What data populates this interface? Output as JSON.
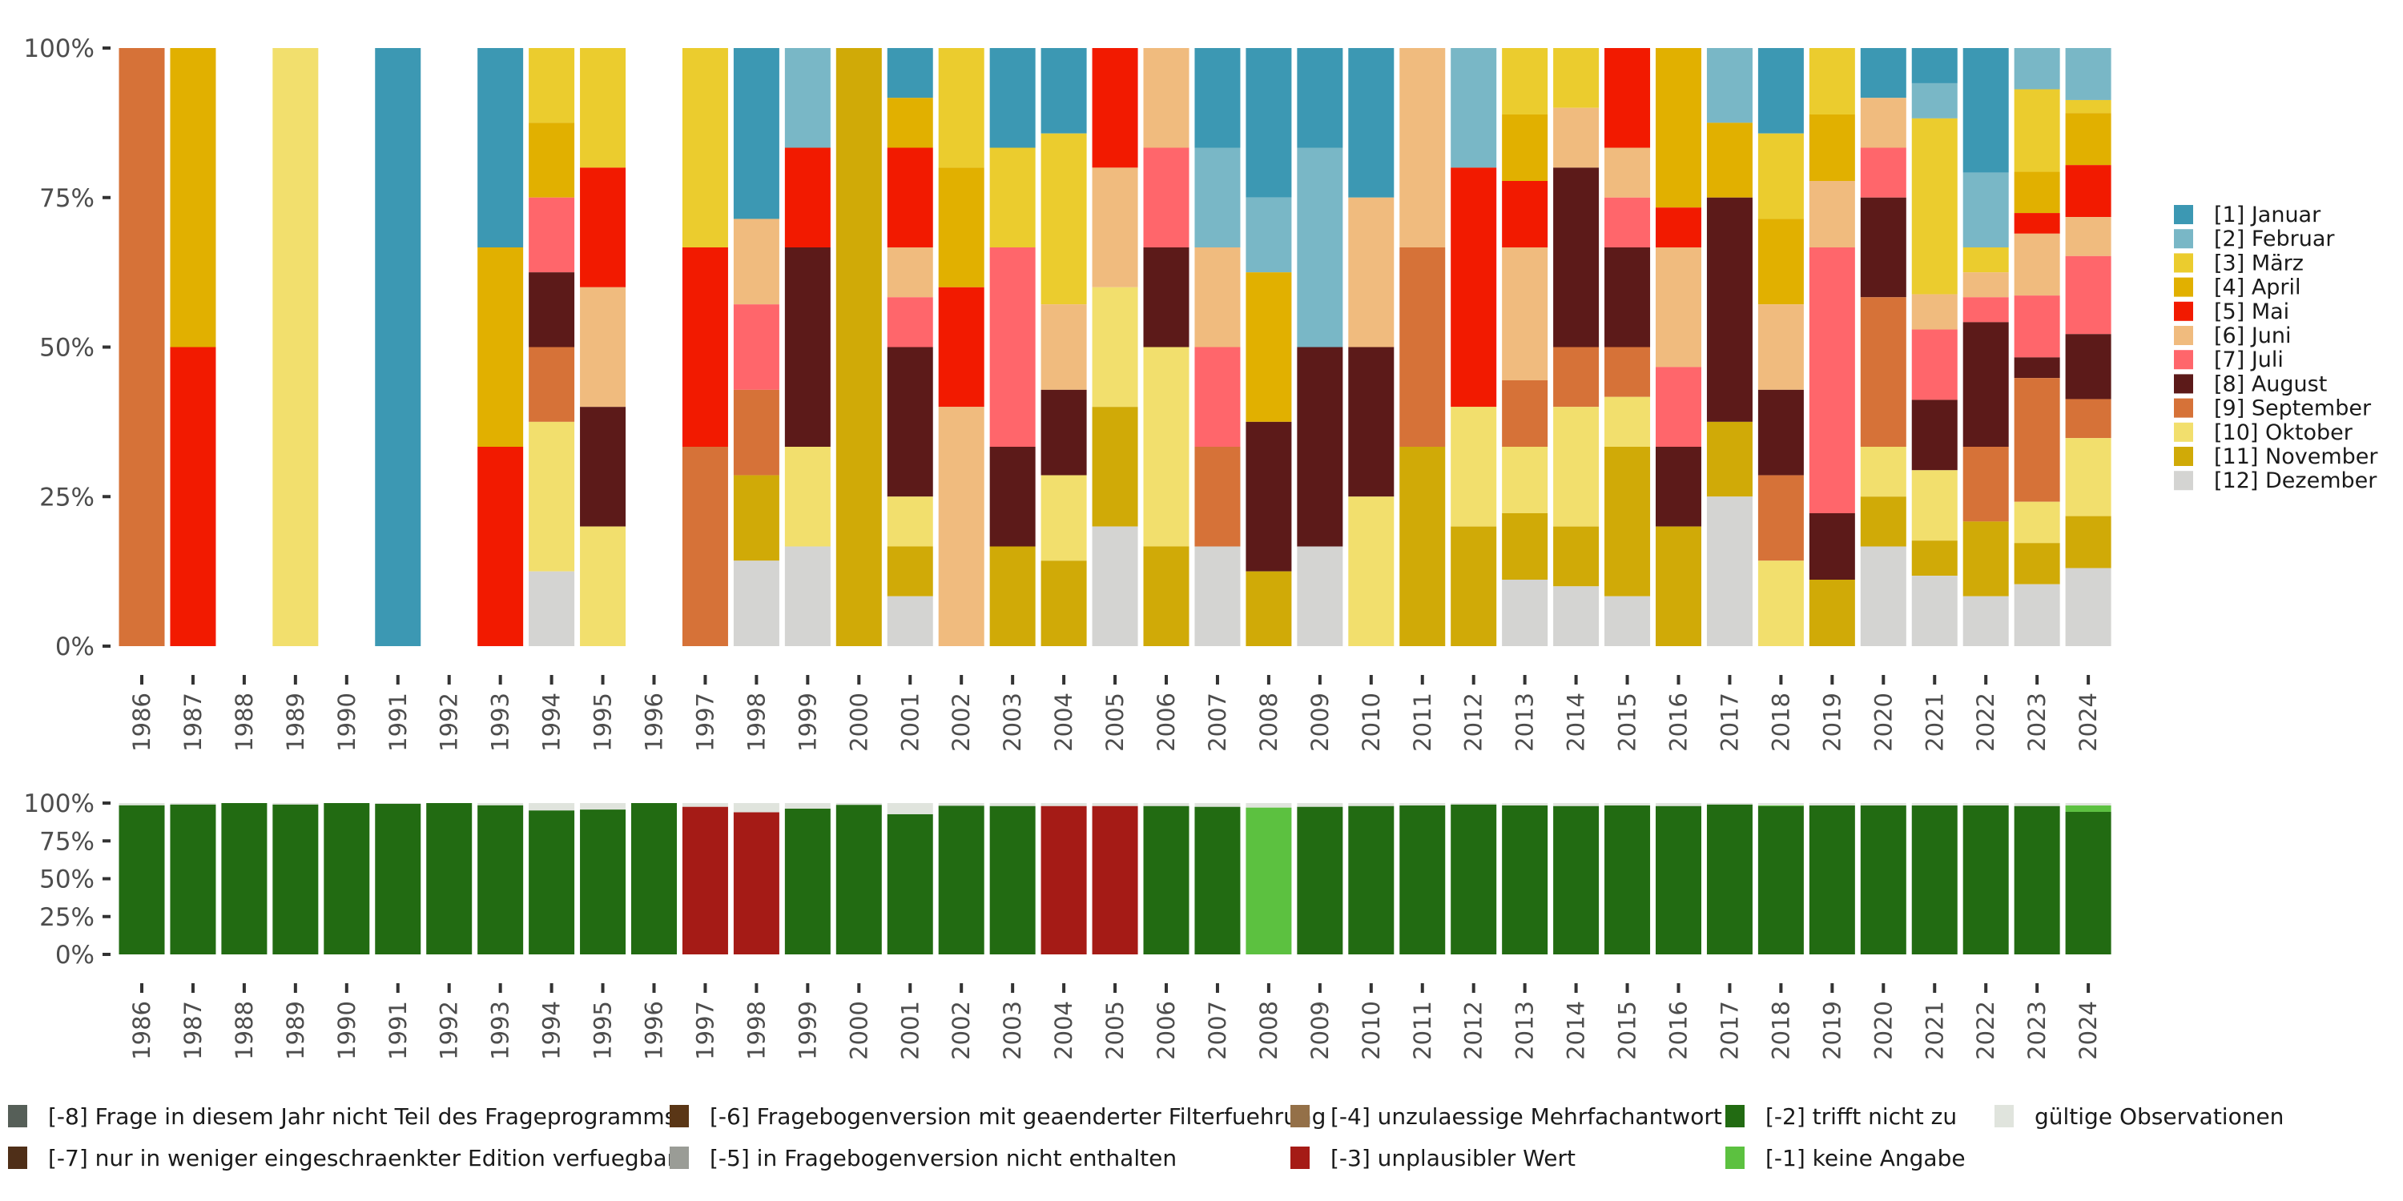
{
  "chart_data": [
    {
      "type": "bar",
      "stacked": true,
      "normalized": true,
      "title": "",
      "xlabel": "",
      "ylabel": "",
      "ylim": [
        0,
        1
      ],
      "y_ticks": [
        "0%",
        "25%",
        "50%",
        "75%",
        "100%"
      ],
      "grid": false,
      "legend_position": "right",
      "categories": [
        "1986",
        "1987",
        "1988",
        "1989",
        "1990",
        "1991",
        "1992",
        "1993",
        "1994",
        "1995",
        "1996",
        "1997",
        "1998",
        "1999",
        "2000",
        "2001",
        "2002",
        "2003",
        "2004",
        "2005",
        "2006",
        "2007",
        "2008",
        "2009",
        "2010",
        "2011",
        "2012",
        "2013",
        "2014",
        "2015",
        "2016",
        "2017",
        "2018",
        "2019",
        "2020",
        "2021",
        "2022",
        "2023",
        "2024"
      ],
      "series": [
        {
          "name": "[1] Januar",
          "color": "#3c98b3",
          "values": [
            0,
            0,
            0,
            0,
            0,
            1,
            0,
            1,
            0,
            0,
            0,
            0,
            2,
            0,
            0,
            1,
            0,
            1,
            1,
            0,
            0,
            1,
            2,
            1,
            1,
            0,
            0,
            0,
            0,
            0,
            0,
            0,
            1,
            0,
            1,
            1,
            5,
            0,
            0
          ]
        },
        {
          "name": "[2] Februar",
          "color": "#79b7c6",
          "values": [
            0,
            0,
            0,
            0,
            0,
            0,
            0,
            0,
            0,
            0,
            0,
            0,
            0,
            1,
            0,
            0,
            0,
            0,
            0,
            0,
            0,
            1,
            1,
            2,
            0,
            0,
            1,
            0,
            0,
            0,
            0,
            1,
            0,
            0,
            0,
            1,
            3,
            2,
            4
          ]
        },
        {
          "name": "[3] März",
          "color": "#ebcc2e",
          "values": [
            0,
            0,
            0,
            0,
            0,
            0,
            0,
            0,
            1,
            1,
            0,
            1,
            0,
            0,
            0,
            0,
            1,
            1,
            2,
            0,
            0,
            0,
            0,
            0,
            0,
            0,
            0,
            1,
            1,
            0,
            0,
            0,
            1,
            1,
            0,
            5,
            1,
            4,
            1
          ]
        },
        {
          "name": "[4] April",
          "color": "#e1b000",
          "values": [
            0,
            1,
            0,
            0,
            0,
            0,
            0,
            1,
            1,
            0,
            0,
            0,
            0,
            0,
            0,
            1,
            1,
            0,
            0,
            0,
            0,
            0,
            2,
            0,
            0,
            0,
            0,
            1,
            0,
            0,
            4,
            1,
            1,
            1,
            0,
            0,
            0,
            2,
            4
          ]
        },
        {
          "name": "[5] Mai",
          "color": "#f21a00",
          "values": [
            0,
            1,
            0,
            0,
            0,
            0,
            0,
            1,
            0,
            1,
            0,
            1,
            0,
            1,
            0,
            2,
            1,
            0,
            0,
            1,
            0,
            0,
            0,
            0,
            0,
            0,
            2,
            1,
            0,
            2,
            1,
            0,
            0,
            0,
            0,
            0,
            0,
            1,
            4
          ]
        },
        {
          "name": "[6] Juni",
          "color": "#f0bb7e",
          "values": [
            0,
            0,
            0,
            0,
            0,
            0,
            0,
            0,
            0,
            1,
            0,
            0,
            1,
            0,
            0,
            1,
            2,
            0,
            1,
            1,
            1,
            1,
            0,
            0,
            1,
            1,
            0,
            2,
            1,
            1,
            3,
            0,
            1,
            1,
            1,
            1,
            1,
            3,
            3
          ]
        },
        {
          "name": "[7] Juli",
          "color": "#ff666b",
          "values": [
            0,
            0,
            0,
            0,
            0,
            0,
            0,
            0,
            1,
            0,
            0,
            0,
            1,
            0,
            0,
            1,
            0,
            2,
            0,
            0,
            1,
            1,
            0,
            0,
            0,
            0,
            0,
            0,
            0,
            1,
            2,
            0,
            0,
            4,
            1,
            2,
            1,
            3,
            6
          ]
        },
        {
          "name": "[8] August",
          "color": "#5c1a19",
          "values": [
            0,
            0,
            0,
            0,
            0,
            0,
            0,
            0,
            1,
            1,
            0,
            0,
            0,
            2,
            0,
            3,
            0,
            1,
            1,
            0,
            1,
            0,
            2,
            2,
            1,
            0,
            0,
            0,
            3,
            2,
            2,
            3,
            1,
            1,
            2,
            2,
            5,
            1,
            5
          ]
        },
        {
          "name": "[9] September",
          "color": "#d67238",
          "values": [
            1,
            0,
            0,
            0,
            0,
            0,
            0,
            0,
            1,
            0,
            0,
            1,
            1,
            0,
            0,
            0,
            0,
            0,
            0,
            0,
            0,
            1,
            0,
            0,
            0,
            1,
            0,
            1,
            1,
            1,
            0,
            0,
            1,
            0,
            3,
            0,
            3,
            6,
            3
          ]
        },
        {
          "name": "[10] Oktober",
          "color": "#f2df6d",
          "values": [
            0,
            0,
            0,
            1,
            0,
            0,
            0,
            0,
            2,
            1,
            0,
            0,
            0,
            1,
            0,
            1,
            0,
            0,
            1,
            1,
            2,
            0,
            0,
            0,
            1,
            0,
            1,
            1,
            2,
            1,
            0,
            0,
            1,
            0,
            1,
            2,
            0,
            2,
            6
          ]
        },
        {
          "name": "[11] November",
          "color": "#d0aa07",
          "values": [
            0,
            0,
            0,
            0,
            0,
            0,
            0,
            0,
            0,
            0,
            0,
            0,
            1,
            0,
            1,
            1,
            0,
            1,
            1,
            1,
            1,
            0,
            1,
            0,
            0,
            1,
            1,
            1,
            1,
            3,
            3,
            1,
            0,
            1,
            1,
            1,
            3,
            2,
            4
          ]
        },
        {
          "name": "[12] Dezember",
          "color": "#d4d4d2",
          "values": [
            0,
            0,
            0,
            0,
            0,
            0,
            0,
            0,
            1,
            0,
            0,
            0,
            1,
            1,
            0,
            1,
            0,
            0,
            0,
            1,
            0,
            1,
            0,
            1,
            0,
            0,
            0,
            1,
            1,
            1,
            0,
            2,
            0,
            0,
            2,
            2,
            2,
            3,
            6
          ]
        }
      ]
    },
    {
      "type": "bar",
      "stacked": true,
      "normalized": true,
      "title": "",
      "xlabel": "",
      "ylabel": "",
      "ylim": [
        0,
        1
      ],
      "y_ticks": [
        "0%",
        "25%",
        "50%",
        "75%",
        "100%"
      ],
      "grid": false,
      "legend_position": "bottom",
      "categories": [
        "1986",
        "1987",
        "1988",
        "1989",
        "1990",
        "1991",
        "1992",
        "1993",
        "1994",
        "1995",
        "1996",
        "1997",
        "1998",
        "1999",
        "2000",
        "2001",
        "2002",
        "2003",
        "2004",
        "2005",
        "2006",
        "2007",
        "2008",
        "2009",
        "2010",
        "2011",
        "2012",
        "2013",
        "2014",
        "2015",
        "2016",
        "2017",
        "2018",
        "2019",
        "2020",
        "2021",
        "2022",
        "2023",
        "2024"
      ],
      "series": [
        {
          "name": "gültige Observationen",
          "color": "#e0e4dd",
          "values": [
            0.015,
            0.01,
            0,
            0.01,
            0,
            0.005,
            0,
            0.015,
            0.049,
            0.043,
            0,
            0.025,
            0.061,
            0.037,
            0.012,
            0.074,
            0.018,
            0.02,
            0.02,
            0.02,
            0.02,
            0.025,
            0.03,
            0.025,
            0.02,
            0.016,
            0.01,
            0.016,
            0.02,
            0.016,
            0.02,
            0.01,
            0.016,
            0.016,
            0.016,
            0.016,
            0.016,
            0.02,
            0.016
          ]
        },
        {
          "name": "[-1] keine Angabe",
          "color": "#5cc140",
          "values": [
            0,
            0,
            0,
            0,
            0,
            0,
            0,
            0,
            0,
            0,
            0,
            0,
            0,
            0,
            0,
            0,
            0,
            0,
            0,
            0,
            0,
            0,
            0.97,
            0,
            0,
            0,
            0,
            0,
            0,
            0,
            0,
            0,
            0.005,
            0,
            0,
            0,
            0,
            0,
            0.042
          ]
        },
        {
          "name": "[-2] trifft nicht zu",
          "color": "#226b12",
          "values": [
            0.985,
            0.99,
            1,
            0.99,
            1,
            0.995,
            1,
            0.985,
            0.951,
            0.957,
            1,
            0,
            0,
            0.963,
            0.988,
            0.926,
            0.982,
            0.98,
            0,
            0,
            0.98,
            0.975,
            0,
            0.975,
            0.98,
            0.984,
            0.99,
            0.984,
            0.98,
            0.984,
            0.98,
            0.99,
            0.979,
            0.984,
            0.984,
            0.984,
            0.984,
            0.98,
            0.942
          ]
        },
        {
          "name": "[-3] unplausibler Wert",
          "color": "#a51b16",
          "values": [
            0,
            0,
            0,
            0,
            0,
            0,
            0,
            0,
            0,
            0,
            0,
            0.975,
            0.939,
            0,
            0,
            0,
            0,
            0,
            0.98,
            0.98,
            0,
            0,
            0,
            0,
            0,
            0,
            0,
            0,
            0,
            0,
            0,
            0,
            0,
            0,
            0,
            0,
            0,
            0,
            0
          ]
        },
        {
          "name": "[-4] unzulaessige Mehrfachantwort",
          "color": "#947048",
          "values": []
        },
        {
          "name": "[-5] in Fragebogenversion nicht enthalten",
          "color": "#9a9c96",
          "values": []
        },
        {
          "name": "[-6] Fragebogenversion mit geaenderter Filterfuehrung",
          "color": "#5a3616",
          "values": []
        },
        {
          "name": "[-7] nur in weniger eingeschraenkter Edition verfuegbar",
          "color": "#4f2f18",
          "values": []
        },
        {
          "name": "[-8] Frage in diesem Jahr nicht Teil des Frageprogramms",
          "color": "#565f58",
          "values": []
        }
      ]
    }
  ],
  "legend_top": [
    {
      "label": "[1] Januar",
      "color": "#3c98b3"
    },
    {
      "label": "[2] Februar",
      "color": "#79b7c6"
    },
    {
      "label": "[3] März",
      "color": "#ebcc2e"
    },
    {
      "label": "[4] April",
      "color": "#e1b000"
    },
    {
      "label": "[5] Mai",
      "color": "#f21a00"
    },
    {
      "label": "[6] Juni",
      "color": "#f0bb7e"
    },
    {
      "label": "[7] Juli",
      "color": "#ff666b"
    },
    {
      "label": "[8] August",
      "color": "#5c1a19"
    },
    {
      "label": "[9] September",
      "color": "#d67238"
    },
    {
      "label": "[10] Oktober",
      "color": "#f2df6d"
    },
    {
      "label": "[11] November",
      "color": "#d0aa07"
    },
    {
      "label": "[12] Dezember",
      "color": "#d4d4d2"
    }
  ],
  "legend_bottom": [
    {
      "label": "[-8] Frage in diesem Jahr nicht Teil des Frageprogramms",
      "color": "#565f58"
    },
    {
      "label": "[-7] nur in weniger eingeschraenkter Edition verfuegbar",
      "color": "#4f2f18"
    },
    {
      "label": "[-6] Fragebogenversion mit geaenderter Filterfuehrung",
      "color": "#5a3616"
    },
    {
      "label": "[-5] in Fragebogenversion nicht enthalten",
      "color": "#9a9c96"
    },
    {
      "label": "[-4] unzulaessige Mehrfachantwort",
      "color": "#947048"
    },
    {
      "label": "[-3] unplausibler Wert",
      "color": "#a51b16"
    },
    {
      "label": "[-2] trifft nicht zu",
      "color": "#226b12"
    },
    {
      "label": "[-1] keine Angabe",
      "color": "#5cc140"
    },
    {
      "label": "gültige Observationen",
      "color": "#e0e4dd"
    }
  ]
}
